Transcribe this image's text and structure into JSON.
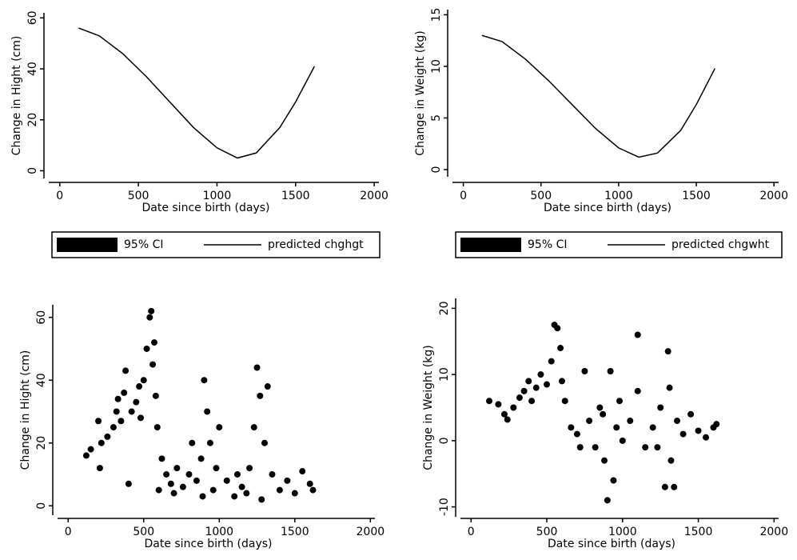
{
  "chart_data": [
    {
      "type": "line",
      "xlabel": "Date since birth (days)",
      "ylabel": "Change in Hight (cm)",
      "x": [
        120,
        250,
        400,
        550,
        700,
        850,
        1000,
        1130,
        1250,
        1400,
        1500,
        1620
      ],
      "series": [
        {
          "name": "predicted chghgt",
          "color": "#000000",
          "values": [
            56,
            53,
            46,
            37,
            27,
            17,
            9,
            5,
            7,
            17,
            27,
            41
          ]
        }
      ],
      "ci_label": "95% CI",
      "xlim": [
        -70,
        2030
      ],
      "xticks": [
        0,
        500,
        1000,
        1500,
        2000
      ],
      "ylim": [
        -3,
        62
      ],
      "yticks": [
        0,
        20,
        40,
        60
      ]
    },
    {
      "type": "line",
      "xlabel": "Date since birth (days)",
      "ylabel": "Change in Weight (kg)",
      "x": [
        120,
        250,
        400,
        550,
        700,
        850,
        1000,
        1130,
        1250,
        1400,
        1500,
        1620
      ],
      "series": [
        {
          "name": "predicted chgwht",
          "color": "#000000",
          "values": [
            13,
            12.4,
            10.7,
            8.6,
            6.3,
            4,
            2.1,
            1.2,
            1.6,
            3.8,
            6.3,
            9.8
          ]
        }
      ],
      "ci_label": "95% CI",
      "xlim": [
        -70,
        2030
      ],
      "xticks": [
        0,
        500,
        1000,
        1500,
        2000
      ],
      "ylim": [
        -0.7,
        15.5
      ],
      "yticks": [
        0,
        5,
        10,
        15
      ]
    },
    {
      "type": "scatter",
      "xlabel": "Date since birth (days)",
      "ylabel": "Change in Hight (cm)",
      "color": "#000000",
      "x": [
        120,
        150,
        200,
        210,
        220,
        260,
        300,
        320,
        350,
        370,
        380,
        400,
        420,
        450,
        470,
        500,
        520,
        540,
        550,
        560,
        580,
        590,
        600,
        620,
        650,
        700,
        720,
        760,
        800,
        820,
        850,
        880,
        900,
        920,
        940,
        960,
        980,
        1000,
        1050,
        1100,
        1120,
        1150,
        1200,
        1230,
        1250,
        1270,
        1300,
        1320,
        1350,
        1400,
        1450,
        1500,
        1550,
        1600,
        1620,
        330,
        480,
        570,
        890,
        1280,
        680,
        1180
      ],
      "y": [
        16,
        18,
        27,
        12,
        20,
        22,
        25,
        30,
        27,
        36,
        43,
        7,
        30,
        33,
        38,
        40,
        50,
        60,
        62,
        45,
        35,
        25,
        5,
        15,
        10,
        4,
        12,
        6,
        10,
        20,
        8,
        15,
        40,
        30,
        20,
        5,
        12,
        25,
        8,
        3,
        10,
        6,
        12,
        25,
        44,
        35,
        20,
        38,
        10,
        5,
        8,
        4,
        11,
        7,
        5,
        34,
        28,
        52,
        3,
        2,
        7,
        4
      ],
      "xlim": [
        -70,
        2030
      ],
      "xticks": [
        0,
        500,
        1000,
        1500,
        2000
      ],
      "ylim": [
        -3,
        64
      ],
      "yticks": [
        0,
        20,
        40,
        60
      ]
    },
    {
      "type": "scatter",
      "xlabel": "Date since birth (days)",
      "ylabel": "Change in Weight (kg)",
      "color": "#000000",
      "x": [
        120,
        180,
        220,
        240,
        280,
        320,
        350,
        380,
        400,
        430,
        460,
        500,
        530,
        550,
        570,
        590,
        600,
        620,
        700,
        720,
        750,
        780,
        820,
        850,
        880,
        900,
        920,
        940,
        960,
        980,
        1000,
        1050,
        1100,
        1100,
        1150,
        1200,
        1250,
        1280,
        1300,
        1320,
        1340,
        1360,
        1400,
        1450,
        1500,
        1550,
        1600,
        1620,
        660,
        870,
        1230,
        1310
      ],
      "y": [
        6,
        5.5,
        4,
        3.2,
        5,
        6.5,
        7.5,
        9,
        6,
        8,
        10,
        8.5,
        12,
        17.5,
        17,
        14,
        9,
        6,
        1,
        -1,
        10.5,
        3,
        -1,
        5,
        -3,
        -9,
        10.5,
        -6,
        2,
        6,
        0,
        3,
        16,
        7.5,
        -1,
        2,
        5,
        -7,
        13.5,
        -3,
        -7,
        3,
        1,
        4,
        1.5,
        0.5,
        2,
        2.5,
        2,
        4,
        -1,
        8
      ],
      "xlim": [
        -70,
        2030
      ],
      "xticks": [
        0,
        500,
        1000,
        1500,
        2000
      ],
      "ylim": [
        -11.5,
        21.5
      ],
      "yticks": [
        -10,
        0,
        10,
        20
      ]
    }
  ]
}
